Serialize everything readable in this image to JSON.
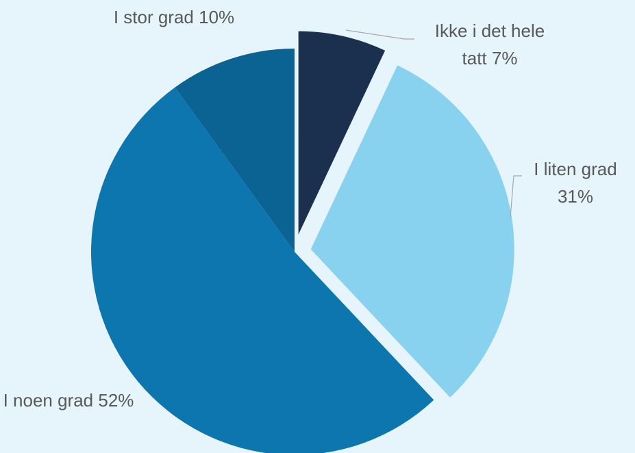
{
  "chart_data": {
    "type": "pie",
    "categories": [
      "Ikke i det hele tatt",
      "I liten grad",
      "I noen grad",
      "I stor grad"
    ],
    "values": [
      7,
      31,
      52,
      10
    ],
    "value_labels": [
      "7%",
      "31%",
      "52%",
      "10%"
    ],
    "colors": [
      "#1b2f4e",
      "#88d1ef",
      "#0e76ae",
      "#0b6393"
    ]
  }
}
